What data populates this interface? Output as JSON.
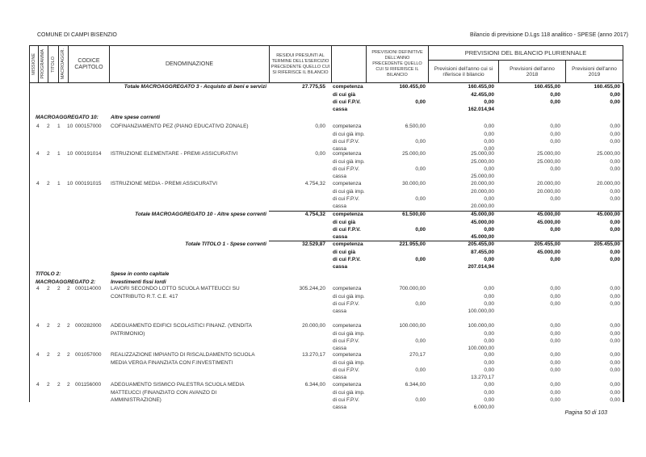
{
  "header": {
    "entity": "COMUNE DI CAMPI BISENZIO",
    "report_title": "Bilancio di previsione D.Lgs 118 analitico - SPESE (anno 2017)"
  },
  "columns": {
    "missione": "MISSIONE",
    "programma": "PROGRAMMA",
    "titolo": "TITOLO",
    "macroaggr": "MACROAGGR.",
    "codice": "CODICE CAPITOLO",
    "denominazione": "DENOMINAZIONE",
    "residui": "RESIDUI PRESUNTI AL TERMINE DELL'ESERCIZIO PRECEDENTE QUELLO CUI SI RIFERISCE IL BILANCIO",
    "previsioni_def": "PREVISIONI DEFINITIVE DELL'ANNO PRECEDENTE QUELLO CUI SI RIFERISCE IL BILANCIO",
    "pluriennale": "PREVISIONI DEL BILANCIO PLURIENNALE",
    "anno_corrente": "Previsioni dell'anno cui si riferisce il bilancio",
    "anno_2018": "Previsioni dell'anno 2018",
    "anno_2019": "Previsioni dell'anno 2019"
  },
  "labels_item": [
    "competenza",
    "di cui già imp.",
    "di cui F.P.V.",
    "cassa"
  ],
  "labels_total": [
    "competenza",
    "di cui già",
    "di cui F.P.V.",
    "cassa"
  ],
  "rows": [
    {
      "type": "total",
      "label": "Totale MACROAGGREGATO 3 - Acquisto di beni e servizi",
      "residui": "27.775,55",
      "prev_comp": "160.455,00",
      "prev_fpv": "0,00",
      "y1": [
        "160.455,00",
        "42.455,00",
        "0,00",
        "162.014,94"
      ],
      "y2": [
        "160.455,00",
        "0,00",
        "0,00"
      ],
      "y3": [
        "160.455,00",
        "0,00",
        "0,00"
      ]
    },
    {
      "type": "section",
      "lines": [
        [
          "MACROAGGREGATO 10:",
          "Altre spese correnti"
        ]
      ]
    },
    {
      "type": "item",
      "mis": "4",
      "prog": "2",
      "tit": "1",
      "macro": "10",
      "code": "000157000",
      "desc": [
        "COFINANZIAMENTO PEZ (PIANO EDUCATIVO ZONALE)"
      ],
      "residui": "0,00",
      "prev_comp": "6.500,00",
      "prev_fpv": "0,00",
      "y1": [
        "0,00",
        "0,00",
        "0,00",
        "0,00"
      ],
      "y2": [
        "0,00",
        "0,00",
        "0,00"
      ],
      "y3": [
        "0,00",
        "0,00",
        "0,00"
      ]
    },
    {
      "type": "item",
      "mis": "4",
      "prog": "2",
      "tit": "1",
      "macro": "10",
      "code": "000191014",
      "desc": [
        "ISTRUZIONE ELEMENTARE - PREMI ASSICURATIVI"
      ],
      "residui": "0,00",
      "prev_comp": "25.000,00",
      "prev_fpv": "0,00",
      "y1": [
        "25.000,00",
        "25.000,00",
        "0,00",
        "25.000,00"
      ],
      "y2": [
        "25.000,00",
        "25.000,00",
        "0,00"
      ],
      "y3": [
        "25.000,00",
        "0,00",
        "0,00"
      ]
    },
    {
      "type": "item",
      "mis": "4",
      "prog": "2",
      "tit": "1",
      "macro": "10",
      "code": "000191015",
      "desc": [
        "ISTRUZIONE MEDIA - PREMI ASSICURATVI"
      ],
      "residui": "4.754,32",
      "prev_comp": "30.000,00",
      "prev_fpv": "0,00",
      "y1": [
        "20.000,00",
        "20.000,00",
        "0,00",
        "20.000,00"
      ],
      "y2": [
        "20.000,00",
        "20.000,00",
        "0,00"
      ],
      "y3": [
        "20.000,00",
        "0,00",
        "0,00"
      ]
    },
    {
      "type": "total",
      "label": "Totale MACROAGGREGATO 10 - Altre spese correnti",
      "residui": "4.754,32",
      "prev_comp": "61.500,00",
      "prev_fpv": "0,00",
      "y1": [
        "45.000,00",
        "45.000,00",
        "0,00",
        "45.000,00"
      ],
      "y2": [
        "45.000,00",
        "45.000,00",
        "0,00"
      ],
      "y3": [
        "45.000,00",
        "0,00",
        "0,00"
      ]
    },
    {
      "type": "total",
      "label": "Totale TITOLO 1 - Spese correnti",
      "residui": "32.529,87",
      "prev_comp": "221.955,00",
      "prev_fpv": "0,00",
      "y1": [
        "205.455,00",
        "87.455,00",
        "0,00",
        "207.014,94"
      ],
      "y2": [
        "205.455,00",
        "45.000,00",
        "0,00"
      ],
      "y3": [
        "205.455,00",
        "0,00",
        "0,00"
      ]
    },
    {
      "type": "section",
      "lines": [
        [
          "TITOLO 2:",
          "Spese in conto capitale"
        ],
        [
          "MACROAGGREGATO 2:",
          "Investimenti fissi lordi"
        ]
      ]
    },
    {
      "type": "item",
      "mis": "4",
      "prog": "2",
      "tit": "2",
      "macro": "2",
      "code": "000114000",
      "desc": [
        "LAVORI SECONDO LOTTO SCUOLA MATTEUCCI SU",
        "CONTRIBUTO R.T. C.E. 417"
      ],
      "residui": "305.244,20",
      "prev_comp": "700.000,00",
      "prev_fpv": "0,00",
      "y1": [
        "0,00",
        "0,00",
        "0,00",
        "100.000,00"
      ],
      "y2": [
        "0,00",
        "0,00",
        "0,00"
      ],
      "y3": [
        "0,00",
        "0,00",
        "0,00"
      ]
    },
    {
      "type": "item",
      "mis": "4",
      "prog": "2",
      "tit": "2",
      "macro": "2",
      "code": "000282000",
      "desc": [
        "ADEGUAMENTO EDIFICI SCOLASTICI  FINANZ. (VENDITA",
        "PATRIMONIO)"
      ],
      "residui": "20.000,00",
      "prev_comp": "100.000,00",
      "prev_fpv": "0,00",
      "y1": [
        "100.000,00",
        "0,00",
        "0,00",
        "100.000,00"
      ],
      "y2": [
        "0,00",
        "0,00",
        "0,00"
      ],
      "y3": [
        "0,00",
        "0,00",
        "0,00"
      ]
    },
    {
      "type": "item",
      "mis": "4",
      "prog": "2",
      "tit": "2",
      "macro": "2",
      "code": "001057000",
      "desc": [
        "REALIZZAZIONE IMPIANTO DI RISCALDAMENTO SCUOLA",
        "MEDIA VERGA FINANZIATA CON F.INVESTIMENTI"
      ],
      "residui": "13.270,17",
      "prev_comp": "270,17",
      "prev_fpv": "0,00",
      "y1": [
        "0,00",
        "0,00",
        "0,00",
        "13.270,17"
      ],
      "y2": [
        "0,00",
        "0,00",
        "0,00"
      ],
      "y3": [
        "0,00",
        "0,00",
        "0,00"
      ]
    },
    {
      "type": "item",
      "mis": "4",
      "prog": "2",
      "tit": "2",
      "macro": "2",
      "code": "001156000",
      "desc": [
        "ADEGUAMENTO SISMICO PALESTRA SCUOLA MEDIA",
        "MATTEUCCI (FINANZIATO CON AVANZO DI",
        "AMMINISTRAZIONE)"
      ],
      "residui": "6.344,00",
      "prev_comp": "6.344,00",
      "prev_fpv": "0,00",
      "y1": [
        "0,00",
        "0,00",
        "0,00",
        "6.000,00"
      ],
      "y2": [
        "0,00",
        "0,00",
        "0,00"
      ],
      "y3": [
        "0,00",
        "0,00",
        "0,00"
      ]
    }
  ],
  "footer": {
    "page": "Pagina 50 di 103"
  }
}
